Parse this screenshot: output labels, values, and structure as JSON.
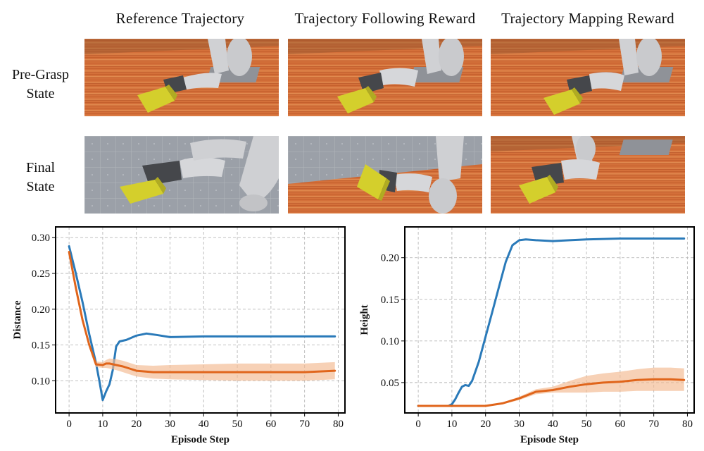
{
  "figure": {
    "columns": [
      "Reference Trajectory",
      "Trajectory Following Reward",
      "Trajectory Mapping Reward"
    ],
    "rows": [
      {
        "label_lines": [
          "Pre-Grasp",
          "State"
        ]
      },
      {
        "label_lines": [
          "Final",
          "State"
        ]
      }
    ],
    "colors": {
      "series_a": "#2a7ab9",
      "series_b": "#e0651b",
      "band_b": "#f3b98f",
      "floor_wood": "#d9733a",
      "floor_grid": "#9a9ea6",
      "robot": "#cfd0d3",
      "hand": "#4a4c50",
      "box": "#d4cf2c"
    }
  },
  "chart_data": [
    {
      "type": "line",
      "xlabel": "Episode Step",
      "ylabel": "Distance",
      "xlim": [
        -4,
        82
      ],
      "ylim": [
        0.055,
        0.315
      ],
      "xticks": [
        0,
        10,
        20,
        30,
        40,
        50,
        60,
        70,
        80
      ],
      "yticks": [
        0.1,
        0.15,
        0.2,
        0.25,
        0.3
      ],
      "ytick_labels": [
        "0.10",
        "0.15",
        "0.20",
        "0.25",
        "0.30"
      ],
      "grid": true,
      "series": [
        {
          "color": "#2a7ab9",
          "x": [
            0,
            2,
            4,
            6,
            8,
            9,
            10,
            11,
            12,
            13,
            14,
            15,
            17,
            20,
            23,
            26,
            30,
            40,
            50,
            60,
            70,
            79
          ],
          "y": [
            0.288,
            0.25,
            0.21,
            0.165,
            0.125,
            0.1,
            0.073,
            0.085,
            0.095,
            0.115,
            0.148,
            0.155,
            0.157,
            0.163,
            0.166,
            0.164,
            0.161,
            0.162,
            0.162,
            0.162,
            0.162,
            0.162
          ]
        },
        {
          "color": "#e0651b",
          "x": [
            0,
            2,
            4,
            6,
            8,
            10,
            11,
            12,
            14,
            16,
            18,
            20,
            25,
            30,
            40,
            50,
            60,
            70,
            79
          ],
          "y": [
            0.28,
            0.23,
            0.185,
            0.15,
            0.123,
            0.122,
            0.124,
            0.124,
            0.122,
            0.12,
            0.117,
            0.114,
            0.112,
            0.112,
            0.112,
            0.112,
            0.112,
            0.112,
            0.114
          ],
          "band_lower": [
            0.276,
            0.226,
            0.181,
            0.146,
            0.119,
            0.118,
            0.118,
            0.117,
            0.115,
            0.112,
            0.109,
            0.106,
            0.103,
            0.102,
            0.101,
            0.1,
            0.1,
            0.1,
            0.102
          ],
          "band_upper": [
            0.284,
            0.234,
            0.189,
            0.154,
            0.127,
            0.126,
            0.129,
            0.131,
            0.13,
            0.128,
            0.125,
            0.122,
            0.121,
            0.122,
            0.123,
            0.124,
            0.124,
            0.124,
            0.126
          ]
        }
      ]
    },
    {
      "type": "line",
      "xlabel": "Episode Step",
      "ylabel": "Height",
      "xlim": [
        -4,
        82
      ],
      "ylim": [
        0.0135,
        0.237
      ],
      "xticks": [
        0,
        10,
        20,
        30,
        40,
        50,
        60,
        70,
        80
      ],
      "yticks": [
        0.05,
        0.1,
        0.15,
        0.2
      ],
      "ytick_labels": [
        "0.05",
        "0.10",
        "0.15",
        "0.20"
      ],
      "grid": true,
      "series": [
        {
          "color": "#2a7ab9",
          "x": [
            0,
            5,
            9,
            10,
            11,
            12,
            13,
            14,
            15,
            16,
            18,
            20,
            22,
            24,
            26,
            28,
            30,
            32,
            35,
            40,
            45,
            50,
            60,
            70,
            79
          ],
          "y": [
            0.022,
            0.022,
            0.022,
            0.024,
            0.03,
            0.038,
            0.045,
            0.047,
            0.046,
            0.052,
            0.075,
            0.105,
            0.135,
            0.165,
            0.195,
            0.215,
            0.221,
            0.222,
            0.221,
            0.22,
            0.221,
            0.222,
            0.223,
            0.223,
            0.223
          ]
        },
        {
          "color": "#e0651b",
          "x": [
            0,
            5,
            10,
            15,
            20,
            25,
            30,
            35,
            40,
            45,
            50,
            55,
            60,
            65,
            70,
            75,
            79
          ],
          "y": [
            0.022,
            0.022,
            0.022,
            0.022,
            0.022,
            0.025,
            0.031,
            0.039,
            0.041,
            0.045,
            0.048,
            0.05,
            0.051,
            0.053,
            0.054,
            0.054,
            0.053
          ],
          "band_lower": [
            0.021,
            0.021,
            0.021,
            0.021,
            0.021,
            0.024,
            0.029,
            0.036,
            0.038,
            0.038,
            0.038,
            0.039,
            0.039,
            0.04,
            0.04,
            0.04,
            0.04
          ],
          "band_upper": [
            0.023,
            0.023,
            0.023,
            0.023,
            0.023,
            0.026,
            0.033,
            0.042,
            0.045,
            0.052,
            0.058,
            0.061,
            0.063,
            0.066,
            0.068,
            0.068,
            0.067
          ]
        }
      ]
    }
  ]
}
